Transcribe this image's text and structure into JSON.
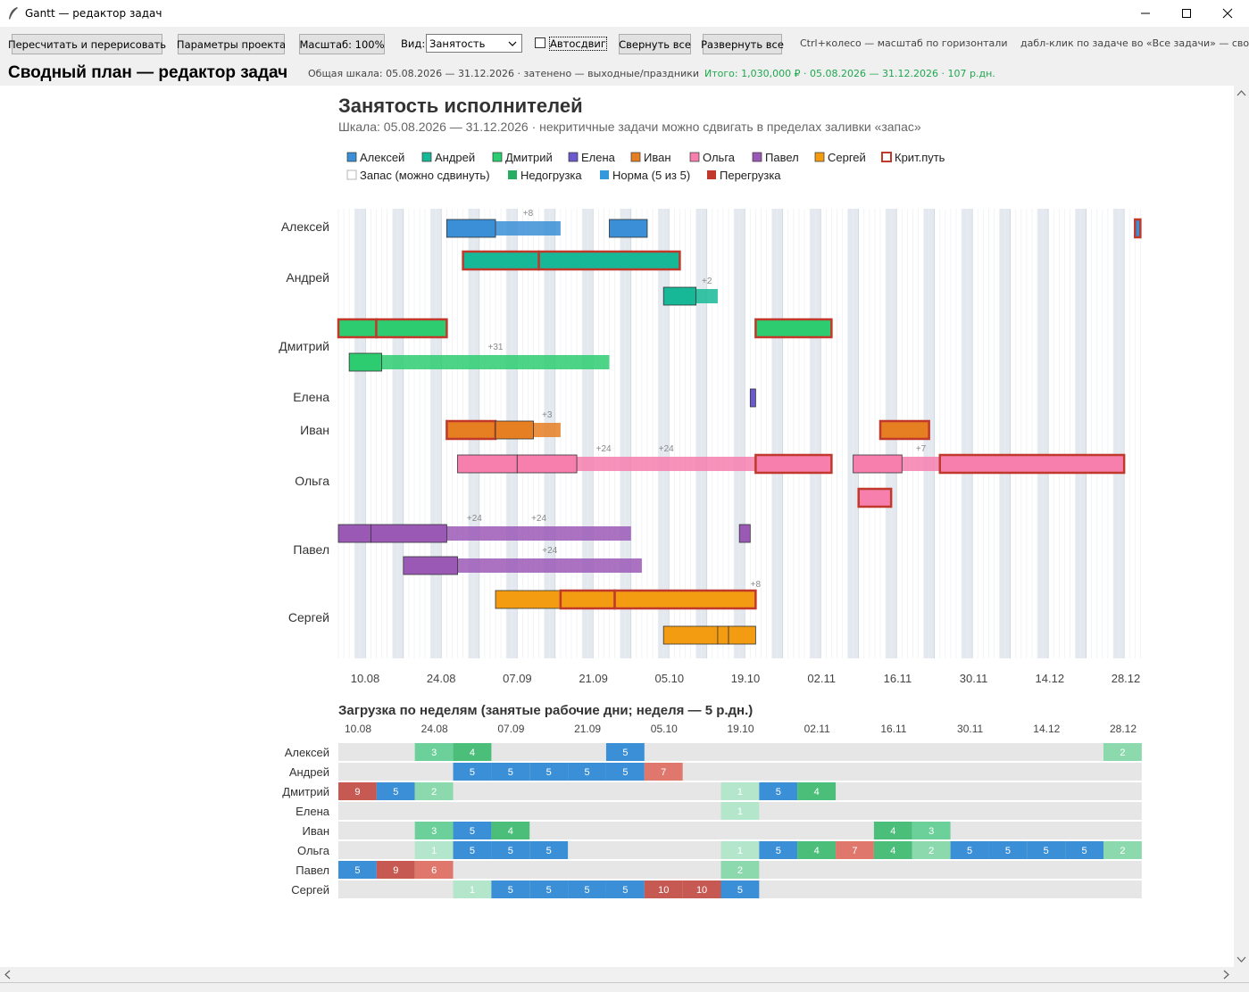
{
  "window": {
    "title": "Gantt — редактор задач"
  },
  "toolbar": {
    "recalc": "Пересчитать и перерисовать",
    "params": "Параметры проекта",
    "scale": "Масштаб: 100%",
    "view_label": "Вид:",
    "view_value": "Занятость",
    "autoshift": "Автосдвиг",
    "autoshift_checked": false,
    "collapse": "Свернуть все",
    "expand": "Развернуть все",
    "hint1": "Ctrl+колесо — масштаб по горизонтали",
    "hint2": "дабл-клик по задаче во «Все задачи» — сво"
  },
  "header": {
    "title": "Сводный план — редактор задач",
    "scale_info": "Общая шкала: 05.08.2026 — 31.12.2026   ·   затенено — выходные/праздники",
    "total_info": "Итого: 1,030,000 ₽   ·   05.08.2026 — 31.12.2026   ·   107 р.дн.",
    "total_color": "#1fa84f"
  },
  "chart": {
    "title": "Занятость исполнителей",
    "subtitle": "Шкала: 05.08.2026 — 31.12.2026 · некритичные задачи можно сдвигать в пределах заливки «запас»",
    "legend_people": [
      {
        "name": "Алексей",
        "color": "#3a8fd6"
      },
      {
        "name": "Андрей",
        "color": "#17b897"
      },
      {
        "name": "Дмитрий",
        "color": "#2ecc71"
      },
      {
        "name": "Елена",
        "color": "#6a5acd"
      },
      {
        "name": "Иван",
        "color": "#e67e22"
      },
      {
        "name": "Ольга",
        "color": "#f67fae"
      },
      {
        "name": "Павел",
        "color": "#9b59b6"
      },
      {
        "name": "Сергей",
        "color": "#f39c12"
      }
    ],
    "legend_critical": "Крит.путь",
    "legend_extra": [
      {
        "name": "Запас (можно сдвинуть)",
        "color": "#ffffff"
      },
      {
        "name": "Недогрузка",
        "color": "#27ae60"
      },
      {
        "name": "Норма (5 из 5)",
        "color": "#3498db"
      },
      {
        "name": "Перегрузка",
        "color": "#c0392b"
      }
    ],
    "critical_color": "#c0392b",
    "date_ticks": [
      "10.08",
      "24.08",
      "07.09",
      "21.09",
      "05.10",
      "19.10",
      "02.11",
      "16.11",
      "30.11",
      "14.12",
      "28.12"
    ]
  },
  "chart_data": [
    {
      "type": "gantt",
      "title": "Занятость исполнителей",
      "x_range": [
        "05.08.2026",
        "31.12.2026"
      ],
      "rows": [
        {
          "person": "Алексей",
          "lane": 0,
          "tasks": [
            {
              "start": "25.08.2026",
              "end": "03.09.2026",
              "critical": false,
              "slack_end": "15.09.2026",
              "slack_label": "+8"
            },
            {
              "start": "24.09.2026",
              "end": "01.10.2026",
              "critical": false
            },
            {
              "start": "30.12.2026",
              "end": "31.12.2026",
              "critical": true
            }
          ]
        },
        {
          "person": "Андрей",
          "lane": 0,
          "tasks": [
            {
              "start": "28.08.2026",
              "end": "11.09.2026",
              "critical": true
            },
            {
              "start": "11.09.2026",
              "end": "07.10.2026",
              "critical": true
            }
          ]
        },
        {
          "person": "Андрей",
          "lane": 1,
          "tasks": [
            {
              "start": "04.10.2026",
              "end": "10.10.2026",
              "critical": false,
              "slack_end": "14.10.2026",
              "slack_label": "+2"
            }
          ]
        },
        {
          "person": "Дмитрий",
          "lane": 0,
          "tasks": [
            {
              "start": "05.08.2026",
              "end": "12.08.2026",
              "critical": true
            },
            {
              "start": "12.08.2026",
              "end": "25.08.2026",
              "critical": true
            },
            {
              "start": "21.10.2026",
              "end": "04.11.2026",
              "critical": true
            }
          ]
        },
        {
          "person": "Дмитрий",
          "lane": 1,
          "tasks": [
            {
              "start": "07.08.2026",
              "end": "13.08.2026",
              "critical": false,
              "slack_end": "24.09.2026",
              "slack_label": "+31"
            }
          ]
        },
        {
          "person": "Елена",
          "lane": 0,
          "tasks": [
            {
              "start": "20.10.2026",
              "end": "21.10.2026",
              "critical": false
            }
          ]
        },
        {
          "person": "Иван",
          "lane": 0,
          "tasks": [
            {
              "start": "25.08.2026",
              "end": "03.09.2026",
              "critical": true
            },
            {
              "start": "03.09.2026",
              "end": "10.09.2026",
              "critical": false,
              "slack_end": "15.09.2026",
              "slack_label": "+3"
            },
            {
              "start": "13.11.2026",
              "end": "22.11.2026",
              "critical": true
            }
          ]
        },
        {
          "person": "Ольга",
          "lane": 0,
          "tasks": [
            {
              "start": "27.08.2026",
              "end": "07.09.2026",
              "critical": false
            },
            {
              "start": "07.09.2026",
              "end": "18.09.2026",
              "critical": false,
              "slack_end": "21.10.2026",
              "slack_labels": [
                "+24",
                "+24"
              ]
            },
            {
              "start": "21.10.2026",
              "end": "04.11.2026",
              "critical": true
            },
            {
              "start": "08.11.2026",
              "end": "17.11.2026",
              "critical": false,
              "slack_end": "24.11.2026",
              "slack_label": "+7"
            },
            {
              "start": "24.11.2026",
              "end": "28.12.2026",
              "critical": true
            }
          ]
        },
        {
          "person": "Ольга",
          "lane": 1,
          "tasks": [
            {
              "start": "09.11.2026",
              "end": "15.11.2026",
              "critical": true
            }
          ]
        },
        {
          "person": "Павел",
          "lane": 0,
          "tasks": [
            {
              "start": "05.08.2026",
              "end": "11.08.2026",
              "critical": false
            },
            {
              "start": "11.08.2026",
              "end": "25.08.2026",
              "critical": false,
              "slack_end": "28.09.2026",
              "slack_labels": [
                "+24",
                "+24"
              ]
            },
            {
              "start": "18.10.2026",
              "end": "20.10.2026",
              "critical": false
            }
          ]
        },
        {
          "person": "Павел",
          "lane": 1,
          "tasks": [
            {
              "start": "17.08.2026",
              "end": "27.08.2026",
              "critical": false,
              "slack_end": "30.09.2026",
              "slack_label": "+24"
            }
          ]
        },
        {
          "person": "Сергей",
          "lane": 0,
          "tasks": [
            {
              "start": "03.09.2026",
              "end": "15.09.2026",
              "critical": false
            },
            {
              "start": "15.09.2026",
              "end": "25.09.2026",
              "critical": true
            },
            {
              "start": "25.09.2026",
              "end": "21.10.2026",
              "critical": true,
              "slack_label": "+8"
            }
          ]
        },
        {
          "person": "Сергей",
          "lane": 1,
          "tasks": [
            {
              "start": "04.10.2026",
              "end": "14.10.2026",
              "critical": false
            },
            {
              "start": "14.10.2026",
              "end": "16.10.2026",
              "critical": false
            },
            {
              "start": "16.10.2026",
              "end": "21.10.2026",
              "critical": false
            }
          ]
        }
      ]
    },
    {
      "type": "heatmap",
      "title": "Загрузка по неделям (занятые рабочие дни; неделя — 5 р.дн.)",
      "week_labels": [
        "10.08",
        "24.08",
        "07.09",
        "21.09",
        "05.10",
        "19.10",
        "02.11",
        "16.11",
        "30.11",
        "14.12",
        "28.12"
      ],
      "weeks": 21,
      "rows": [
        {
          "person": "Алексей",
          "cells": [
            null,
            null,
            3,
            4,
            null,
            null,
            null,
            5,
            null,
            null,
            null,
            null,
            null,
            null,
            null,
            null,
            null,
            null,
            null,
            null,
            2
          ]
        },
        {
          "person": "Андрей",
          "cells": [
            null,
            null,
            null,
            5,
            5,
            5,
            5,
            5,
            7,
            null,
            null,
            null,
            null,
            null,
            null,
            null,
            null,
            null,
            null,
            null,
            null
          ]
        },
        {
          "person": "Дмитрий",
          "cells": [
            9,
            5,
            2,
            null,
            null,
            null,
            null,
            null,
            null,
            null,
            1,
            5,
            4,
            null,
            null,
            null,
            null,
            null,
            null,
            null,
            null
          ]
        },
        {
          "person": "Елена",
          "cells": [
            null,
            null,
            null,
            null,
            null,
            null,
            null,
            null,
            null,
            null,
            1,
            null,
            null,
            null,
            null,
            null,
            null,
            null,
            null,
            null,
            null
          ]
        },
        {
          "person": "Иван",
          "cells": [
            null,
            null,
            3,
            5,
            4,
            null,
            null,
            null,
            null,
            null,
            null,
            null,
            null,
            null,
            4,
            3,
            null,
            null,
            null,
            null,
            null
          ]
        },
        {
          "person": "Ольга",
          "cells": [
            null,
            null,
            1,
            5,
            5,
            5,
            null,
            null,
            null,
            null,
            1,
            5,
            4,
            7,
            4,
            2,
            5,
            5,
            5,
            5,
            2
          ]
        },
        {
          "person": "Павел",
          "cells": [
            5,
            9,
            6,
            null,
            null,
            null,
            null,
            null,
            null,
            null,
            2,
            null,
            null,
            null,
            null,
            null,
            null,
            null,
            null,
            null,
            null
          ]
        },
        {
          "person": "Сергей",
          "cells": [
            null,
            null,
            null,
            1,
            5,
            5,
            5,
            5,
            10,
            10,
            5,
            null,
            null,
            null,
            null,
            null,
            null,
            null,
            null,
            null,
            null
          ]
        }
      ],
      "colors": {
        "empty": "#e6e6e6",
        "load_1": "#b4e6cc",
        "load_2": "#8dd9ae",
        "load_3": "#6bd09a",
        "load_4": "#4bbf7a",
        "load_5": "#3a8fd6",
        "load_6_7": "#e0776c",
        "load_9_plus": "#c65a52"
      }
    }
  ]
}
